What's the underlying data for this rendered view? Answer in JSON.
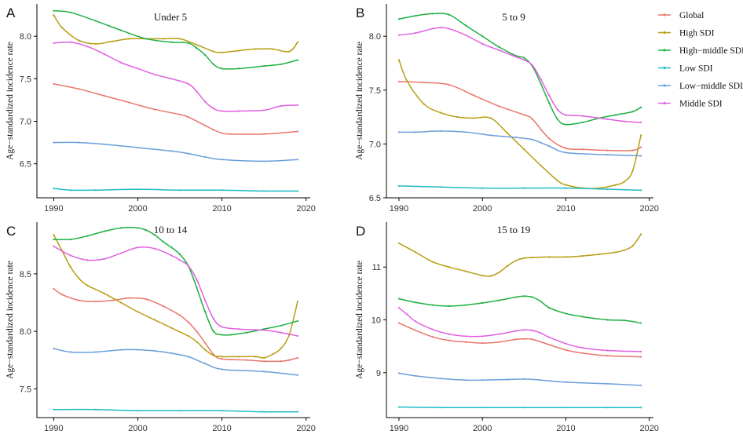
{
  "figure": {
    "legend": {
      "entries": [
        {
          "name": "Global",
          "color": "#E8766C"
        },
        {
          "name": "High SDI",
          "color": "#B79E12"
        },
        {
          "name": "High−middle SDI",
          "color": "#1FB040"
        },
        {
          "name": "Low SDI",
          "color": "#1EBCC4"
        },
        {
          "name": "Low−middle SDI",
          "color": "#6A9FDB"
        },
        {
          "name": "Middle SDI",
          "color": "#E060E0"
        }
      ]
    }
  },
  "chart_data": [
    {
      "type": "line",
      "letter": "A",
      "title": "Under 5",
      "ylabel": "Age−standardized incidence rate",
      "xlabel": "",
      "xlim": [
        1988,
        2020.5
      ],
      "ylim": [
        6.1,
        8.38
      ],
      "xticks": [
        1990,
        2000,
        2010,
        2020
      ],
      "yticks": [
        6.5,
        7.0,
        7.5,
        8.0
      ],
      "ytick_labels": [
        "6.5",
        "7.0",
        "7.5",
        "8.0"
      ],
      "series": [
        {
          "name": "Global",
          "x": [
            1990,
            1993,
            1996,
            1999,
            2002,
            2005,
            2006,
            2008,
            2009,
            2010,
            2011,
            2015,
            2019
          ],
          "values": [
            7.44,
            7.38,
            7.3,
            7.22,
            7.14,
            7.08,
            7.05,
            6.95,
            6.9,
            6.86,
            6.85,
            6.85,
            6.88
          ]
        },
        {
          "name": "High SDI",
          "x": [
            1990,
            1991,
            1993,
            1995,
            1997,
            1999,
            2001,
            2003,
            2005,
            2007,
            2009,
            2010,
            2012,
            2014,
            2016,
            2018,
            2019
          ],
          "values": [
            8.25,
            8.1,
            7.95,
            7.91,
            7.94,
            7.97,
            7.97,
            7.97,
            7.97,
            7.9,
            7.82,
            7.81,
            7.83,
            7.85,
            7.85,
            7.82,
            7.93
          ]
        },
        {
          "name": "High−middle SDI",
          "x": [
            1990,
            1992,
            1995,
            1998,
            2001,
            2004,
            2006,
            2007,
            2008,
            2009,
            2010,
            2012,
            2015,
            2017,
            2019
          ],
          "values": [
            8.3,
            8.28,
            8.18,
            8.07,
            7.97,
            7.93,
            7.92,
            7.86,
            7.78,
            7.67,
            7.62,
            7.62,
            7.65,
            7.67,
            7.72
          ]
        },
        {
          "name": "Low SDI",
          "x": [
            1990,
            1992,
            1995,
            2000,
            2005,
            2010,
            2015,
            2019
          ],
          "values": [
            6.21,
            6.19,
            6.19,
            6.2,
            6.19,
            6.19,
            6.18,
            6.18
          ]
        },
        {
          "name": "Low−middle SDI",
          "x": [
            1990,
            1993,
            1996,
            2000,
            2004,
            2006,
            2008,
            2010,
            2015,
            2019
          ],
          "values": [
            6.75,
            6.75,
            6.73,
            6.69,
            6.65,
            6.62,
            6.58,
            6.55,
            6.53,
            6.55
          ]
        },
        {
          "name": "Middle SDI",
          "x": [
            1990,
            1992,
            1994,
            1996,
            1998,
            2000,
            2002,
            2004,
            2006,
            2007,
            2008,
            2009,
            2010,
            2012,
            2015,
            2017,
            2019
          ],
          "values": [
            7.92,
            7.93,
            7.88,
            7.79,
            7.69,
            7.62,
            7.55,
            7.5,
            7.44,
            7.35,
            7.23,
            7.15,
            7.12,
            7.12,
            7.13,
            7.18,
            7.19
          ]
        }
      ]
    },
    {
      "type": "line",
      "letter": "B",
      "title": "5 to 9",
      "ylabel": "Age−standardized incidence rate",
      "xlabel": "",
      "xlim": [
        1988.5,
        2020.5
      ],
      "ylim": [
        6.5,
        8.3
      ],
      "xticks": [
        1990,
        2000,
        2010,
        2020
      ],
      "yticks": [
        6.5,
        7.0,
        7.5,
        8.0
      ],
      "ytick_labels": [
        "6.5",
        "7.0",
        "7.5",
        "8.0"
      ],
      "series": [
        {
          "name": "Global",
          "x": [
            1990,
            1993,
            1996,
            1999,
            2002,
            2005,
            2006,
            2008,
            2010,
            2012,
            2015,
            2018,
            2019
          ],
          "values": [
            7.58,
            7.57,
            7.55,
            7.45,
            7.35,
            7.27,
            7.23,
            7.05,
            6.96,
            6.95,
            6.94,
            6.94,
            6.97
          ]
        },
        {
          "name": "High SDI",
          "x": [
            1990,
            1991,
            1993,
            1995,
            1997,
            1999,
            2001,
            2003,
            2005,
            2007,
            2009,
            2010,
            2012,
            2014,
            2016,
            2017,
            2018,
            2019
          ],
          "values": [
            7.78,
            7.58,
            7.37,
            7.29,
            7.25,
            7.24,
            7.24,
            7.1,
            6.95,
            6.8,
            6.66,
            6.62,
            6.59,
            6.59,
            6.62,
            6.65,
            6.75,
            7.08
          ]
        },
        {
          "name": "High−middle SDI",
          "x": [
            1990,
            1992,
            1994,
            1996,
            1998,
            2000,
            2002,
            2004,
            2005,
            2006,
            2007,
            2008,
            2009,
            2010,
            2012,
            2014,
            2016,
            2018,
            2019
          ],
          "values": [
            8.16,
            8.19,
            8.21,
            8.2,
            8.1,
            8.0,
            7.9,
            7.82,
            7.8,
            7.72,
            7.56,
            7.38,
            7.23,
            7.18,
            7.2,
            7.24,
            7.27,
            7.3,
            7.34
          ]
        },
        {
          "name": "Low SDI",
          "x": [
            1990,
            1995,
            2000,
            2005,
            2010,
            2015,
            2019
          ],
          "values": [
            6.61,
            6.6,
            6.59,
            6.59,
            6.59,
            6.58,
            6.57
          ]
        },
        {
          "name": "Low−middle SDI",
          "x": [
            1990,
            1992,
            1995,
            1998,
            2001,
            2004,
            2006,
            2008,
            2010,
            2015,
            2019
          ],
          "values": [
            7.11,
            7.11,
            7.12,
            7.11,
            7.08,
            7.06,
            7.04,
            6.98,
            6.92,
            6.9,
            6.89
          ]
        },
        {
          "name": "Middle SDI",
          "x": [
            1990,
            1992,
            1994,
            1995,
            1996,
            1998,
            2000,
            2002,
            2004,
            2005,
            2006,
            2007,
            2008,
            2009,
            2010,
            2012,
            2015,
            2017,
            2019
          ],
          "values": [
            8.01,
            8.03,
            8.07,
            8.08,
            8.07,
            8.01,
            7.93,
            7.87,
            7.81,
            7.78,
            7.73,
            7.6,
            7.45,
            7.32,
            7.27,
            7.26,
            7.23,
            7.21,
            7.2
          ]
        }
      ]
    },
    {
      "type": "line",
      "letter": "C",
      "title": "10 to 14",
      "ylabel": "Age−standardized incidence rate",
      "xlabel": "",
      "xlim": [
        1988,
        2020.5
      ],
      "ylim": [
        7.25,
        8.95
      ],
      "xticks": [
        1990,
        2000,
        2010,
        2020
      ],
      "yticks": [
        7.5,
        8.0,
        8.5
      ],
      "ytick_labels": [
        "7.5",
        "8.0",
        "8.5"
      ],
      "series": [
        {
          "name": "Global",
          "x": [
            1990,
            1991,
            1993,
            1995,
            1997,
            1999,
            2001,
            2003,
            2005,
            2006,
            2007,
            2008,
            2009,
            2010,
            2013,
            2015,
            2017,
            2018,
            2019
          ],
          "values": [
            8.37,
            8.32,
            8.27,
            8.26,
            8.27,
            8.29,
            8.28,
            8.22,
            8.14,
            8.08,
            8.0,
            7.9,
            7.8,
            7.76,
            7.75,
            7.74,
            7.74,
            7.75,
            7.77
          ]
        },
        {
          "name": "High SDI",
          "x": [
            1990,
            1991,
            1992,
            1993,
            1994,
            1996,
            1998,
            2000,
            2002,
            2004,
            2006,
            2007,
            2008,
            2009,
            2010,
            2012,
            2014,
            2015,
            2016,
            2017,
            2018,
            2019
          ],
          "values": [
            8.84,
            8.7,
            8.56,
            8.46,
            8.4,
            8.33,
            8.25,
            8.17,
            8.1,
            8.03,
            7.96,
            7.91,
            7.84,
            7.79,
            7.78,
            7.78,
            7.78,
            7.77,
            7.8,
            7.85,
            7.97,
            8.26
          ]
        },
        {
          "name": "High−middle SDI",
          "x": [
            1990,
            1992,
            1994,
            1996,
            1998,
            2000,
            2001,
            2002,
            2003,
            2004,
            2005,
            2006,
            2007,
            2008,
            2009,
            2010,
            2011,
            2013,
            2015,
            2017,
            2019
          ],
          "values": [
            8.8,
            8.8,
            8.83,
            8.87,
            8.9,
            8.9,
            8.88,
            8.84,
            8.78,
            8.73,
            8.67,
            8.57,
            8.38,
            8.17,
            8.0,
            7.97,
            7.97,
            7.99,
            8.02,
            8.05,
            8.09
          ]
        },
        {
          "name": "Low SDI",
          "x": [
            1990,
            1995,
            2000,
            2005,
            2010,
            2015,
            2019
          ],
          "values": [
            7.32,
            7.32,
            7.31,
            7.31,
            7.31,
            7.3,
            7.3
          ]
        },
        {
          "name": "Low−middle SDI",
          "x": [
            1990,
            1992,
            1995,
            1998,
            2000,
            2002,
            2004,
            2006,
            2008,
            2010,
            2015,
            2019
          ],
          "values": [
            7.85,
            7.82,
            7.82,
            7.84,
            7.84,
            7.83,
            7.81,
            7.78,
            7.72,
            7.67,
            7.65,
            7.62
          ]
        },
        {
          "name": "Middle SDI",
          "x": [
            1990,
            1992,
            1994,
            1996,
            1998,
            2000,
            2002,
            2004,
            2005,
            2006,
            2007,
            2008,
            2009,
            2010,
            2012,
            2015,
            2017,
            2019
          ],
          "values": [
            8.74,
            8.66,
            8.62,
            8.63,
            8.68,
            8.73,
            8.72,
            8.66,
            8.62,
            8.57,
            8.45,
            8.27,
            8.11,
            8.04,
            8.02,
            8.01,
            7.99,
            7.96
          ]
        }
      ]
    },
    {
      "type": "line",
      "letter": "D",
      "title": "15 to 19",
      "ylabel": "Age−standardized incidence rate",
      "xlabel": "",
      "xlim": [
        1988.5,
        2020.5
      ],
      "ylim": [
        8.15,
        11.85
      ],
      "xticks": [
        1990,
        2000,
        2010,
        2020
      ],
      "yticks": [
        9,
        10,
        11
      ],
      "ytick_labels": [
        "9",
        "10",
        "11"
      ],
      "series": [
        {
          "name": "Global",
          "x": [
            1990,
            1992,
            1994,
            1996,
            1998,
            2000,
            2002,
            2004,
            2005,
            2006,
            2008,
            2010,
            2012,
            2015,
            2019
          ],
          "values": [
            9.94,
            9.8,
            9.68,
            9.61,
            9.58,
            9.56,
            9.58,
            9.63,
            9.64,
            9.63,
            9.53,
            9.43,
            9.37,
            9.32,
            9.3
          ]
        },
        {
          "name": "High SDI",
          "x": [
            1990,
            1992,
            1994,
            1996,
            1998,
            2000,
            2001,
            2002,
            2003,
            2004,
            2005,
            2006,
            2008,
            2010,
            2012,
            2014,
            2016,
            2017,
            2018,
            2019
          ],
          "values": [
            11.45,
            11.28,
            11.1,
            11.0,
            10.92,
            10.84,
            10.83,
            10.9,
            11.02,
            11.12,
            11.17,
            11.18,
            11.19,
            11.19,
            11.21,
            11.24,
            11.28,
            11.32,
            11.4,
            11.62
          ]
        },
        {
          "name": "High−middle SDI",
          "x": [
            1990,
            1992,
            1994,
            1996,
            1998,
            2000,
            2002,
            2004,
            2005,
            2006,
            2007,
            2008,
            2010,
            2012,
            2015,
            2017,
            2019
          ],
          "values": [
            10.4,
            10.33,
            10.28,
            10.26,
            10.28,
            10.32,
            10.37,
            10.43,
            10.45,
            10.43,
            10.35,
            10.23,
            10.12,
            10.06,
            10.0,
            9.99,
            9.94
          ]
        },
        {
          "name": "Low SDI",
          "x": [
            1990,
            1995,
            2000,
            2005,
            2010,
            2015,
            2019
          ],
          "values": [
            8.35,
            8.34,
            8.34,
            8.34,
            8.34,
            8.34,
            8.34
          ]
        },
        {
          "name": "Low−middle SDI",
          "x": [
            1990,
            1992,
            1995,
            1998,
            2000,
            2003,
            2005,
            2007,
            2010,
            2015,
            2019
          ],
          "values": [
            8.99,
            8.94,
            8.89,
            8.86,
            8.86,
            8.87,
            8.88,
            8.86,
            8.82,
            8.79,
            8.76
          ]
        },
        {
          "name": "Middle SDI",
          "x": [
            1990,
            1991,
            1992,
            1994,
            1996,
            1998,
            2000,
            2002,
            2004,
            2005,
            2006,
            2007,
            2008,
            2010,
            2012,
            2015,
            2019
          ],
          "values": [
            10.23,
            10.1,
            9.97,
            9.82,
            9.73,
            9.69,
            9.69,
            9.73,
            9.79,
            9.81,
            9.8,
            9.75,
            9.67,
            9.55,
            9.47,
            9.42,
            9.4
          ]
        }
      ]
    }
  ]
}
